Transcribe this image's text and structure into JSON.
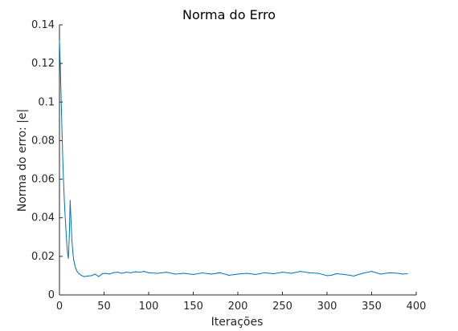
{
  "chart_data": {
    "type": "line",
    "title": "Norma do Erro",
    "xlabel": "Iterações",
    "ylabel": "Norma do erro: |e|",
    "xlim": [
      0,
      400
    ],
    "ylim": [
      0,
      0.14
    ],
    "xticks": [
      0,
      50,
      100,
      150,
      200,
      250,
      300,
      350,
      400
    ],
    "yticks": [
      0,
      0.02,
      0.04,
      0.06,
      0.08,
      0.1,
      0.12,
      0.14
    ],
    "xtick_labels": [
      "0",
      "50",
      "100",
      "150",
      "200",
      "250",
      "300",
      "350",
      "400"
    ],
    "ytick_labels": [
      "0",
      "0.02",
      "0.04",
      "0.06",
      "0.08",
      "0.1",
      "0.12",
      "0.14"
    ],
    "grid": false,
    "series": [
      {
        "color": "#0072bd",
        "x": [
          0,
          1,
          2,
          3,
          4,
          5,
          6,
          7,
          8,
          9,
          10,
          11,
          12,
          13,
          14,
          15,
          16,
          17,
          18,
          20,
          22,
          25,
          28,
          32,
          36,
          40,
          44,
          48,
          52,
          56,
          60,
          65,
          70,
          75,
          80,
          85,
          90,
          95,
          100,
          110,
          120,
          130,
          140,
          150,
          160,
          170,
          180,
          190,
          200,
          210,
          220,
          230,
          240,
          250,
          260,
          270,
          280,
          290,
          300,
          305,
          310,
          320,
          330,
          340,
          350,
          360,
          370,
          380,
          385,
          390
        ],
        "values": [
          0.132,
          0.118,
          0.1,
          0.082,
          0.066,
          0.054,
          0.044,
          0.036,
          0.028,
          0.022,
          0.019,
          0.03,
          0.049,
          0.038,
          0.028,
          0.022,
          0.018,
          0.016,
          0.014,
          0.012,
          0.011,
          0.01,
          0.0095,
          0.0098,
          0.01,
          0.0108,
          0.0095,
          0.011,
          0.0112,
          0.0108,
          0.0115,
          0.0118,
          0.0112,
          0.0118,
          0.0115,
          0.012,
          0.0118,
          0.0122,
          0.0115,
          0.0112,
          0.0118,
          0.0108,
          0.0112,
          0.0106,
          0.0114,
          0.0108,
          0.0115,
          0.0102,
          0.0108,
          0.0112,
          0.0106,
          0.0115,
          0.011,
          0.0118,
          0.0112,
          0.0122,
          0.0115,
          0.0112,
          0.01,
          0.0102,
          0.011,
          0.0106,
          0.0098,
          0.0112,
          0.0122,
          0.0108,
          0.0115,
          0.0112,
          0.0108,
          0.011
        ]
      }
    ]
  }
}
